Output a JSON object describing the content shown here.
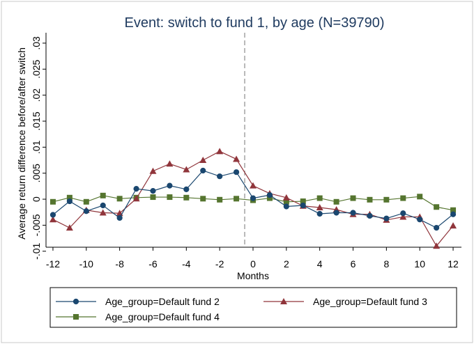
{
  "chart_data": {
    "type": "line",
    "title": "Event: switch to fund 1, by age (N=39790)",
    "xlabel": "Months",
    "ylabel": "Average return difference before/after switch",
    "xlim": [
      -12.5,
      12.5
    ],
    "ylim": [
      -0.0103,
      0.032
    ],
    "x_ticks": [
      "-12",
      "-10",
      "-8",
      "-6",
      "-4",
      "-2",
      "0",
      "2",
      "4",
      "6",
      "8",
      "10",
      "12"
    ],
    "y_ticks": [
      "-.01",
      "-.005",
      "0",
      ".005",
      ".01",
      ".015",
      ".02",
      ".025",
      ".03"
    ],
    "event_line_x": -0.5,
    "grid": false,
    "legend_position": "bottom",
    "x": [
      -12,
      -11,
      -10,
      -9,
      -8,
      -7,
      -6,
      -5,
      -4,
      -3,
      -2,
      -1,
      0,
      1,
      2,
      3,
      4,
      5,
      6,
      7,
      8,
      9,
      10,
      11,
      12
    ],
    "series": [
      {
        "name": "Age_group=Default fund 2",
        "color": "#1a476f",
        "marker": "circle",
        "values": [
          -0.003,
          -0.0004,
          -0.0023,
          -0.0012,
          -0.0036,
          0.002,
          0.0016,
          0.0026,
          0.0019,
          0.0055,
          0.0044,
          0.0052,
          0.0002,
          0.0008,
          -0.0014,
          -0.0012,
          -0.0028,
          -0.0026,
          -0.0026,
          -0.0032,
          -0.0037,
          -0.0027,
          -0.0039,
          -0.0055,
          -0.0029
        ]
      },
      {
        "name": "Age_group=Default fund 3",
        "color": "#90353b",
        "marker": "triangle",
        "values": [
          -0.0039,
          -0.0055,
          -0.0021,
          -0.0026,
          -0.0027,
          0.0001,
          0.0054,
          0.0068,
          0.0057,
          0.0075,
          0.0092,
          0.0077,
          0.0026,
          0.0011,
          0.0003,
          -0.0013,
          -0.0016,
          -0.002,
          -0.0029,
          -0.0029,
          -0.004,
          -0.0034,
          -0.0034,
          -0.009,
          -0.0051
        ]
      },
      {
        "name": "Age_group=Default fund 4",
        "color": "#55752f",
        "marker": "square",
        "values": [
          -0.0005,
          0.0003,
          -0.0005,
          0.0007,
          0.0001,
          0.0003,
          0.0004,
          0.0004,
          0.0003,
          0.0001,
          -0.0001,
          0.0001,
          -0.0002,
          0.0002,
          -0.0005,
          -0.0004,
          0.0002,
          -0.0005,
          0.0002,
          -0.0001,
          -0.0001,
          0.0002,
          0.0005,
          -0.0015,
          -0.0021
        ]
      }
    ]
  }
}
